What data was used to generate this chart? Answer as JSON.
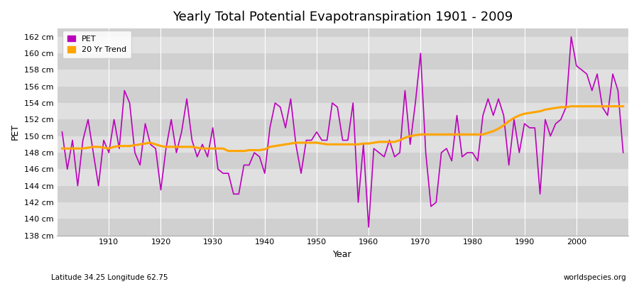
{
  "title": "Yearly Total Potential Evapotranspiration 1901 - 2009",
  "xlabel": "Year",
  "ylabel": "PET",
  "subtitle_left": "Latitude 34.25 Longitude 62.75",
  "subtitle_right": "worldspecies.org",
  "ylim": [
    138,
    163
  ],
  "ytick_step": 2,
  "fig_bg_color": "#ffffff",
  "plot_bg_color": "#dcdcdc",
  "band_color_1": "#d0d0d0",
  "band_color_2": "#e0e0e0",
  "pet_color": "#bb00bb",
  "trend_color": "#ffa500",
  "legend_pet": "PET",
  "legend_trend": "20 Yr Trend",
  "years": [
    1901,
    1902,
    1903,
    1904,
    1905,
    1906,
    1907,
    1908,
    1909,
    1910,
    1911,
    1912,
    1913,
    1914,
    1915,
    1916,
    1917,
    1918,
    1919,
    1920,
    1921,
    1922,
    1923,
    1924,
    1925,
    1926,
    1927,
    1928,
    1929,
    1930,
    1931,
    1932,
    1933,
    1934,
    1935,
    1936,
    1937,
    1938,
    1939,
    1940,
    1941,
    1942,
    1943,
    1944,
    1945,
    1946,
    1947,
    1948,
    1949,
    1950,
    1951,
    1952,
    1953,
    1954,
    1955,
    1956,
    1957,
    1958,
    1959,
    1960,
    1961,
    1962,
    1963,
    1964,
    1965,
    1966,
    1967,
    1968,
    1969,
    1970,
    1971,
    1972,
    1973,
    1974,
    1975,
    1976,
    1977,
    1978,
    1979,
    1980,
    1981,
    1982,
    1983,
    1984,
    1985,
    1986,
    1987,
    1988,
    1989,
    1990,
    1991,
    1992,
    1993,
    1994,
    1995,
    1996,
    1997,
    1998,
    1999,
    2000,
    2001,
    2002,
    2003,
    2004,
    2005,
    2006,
    2007,
    2008,
    2009
  ],
  "pet_values": [
    150.5,
    146.0,
    149.5,
    144.0,
    149.5,
    152.0,
    148.0,
    144.0,
    149.5,
    148.0,
    152.0,
    148.5,
    155.5,
    154.0,
    148.0,
    146.5,
    151.5,
    149.0,
    148.5,
    143.5,
    148.5,
    152.0,
    148.0,
    150.5,
    154.5,
    149.5,
    147.5,
    149.0,
    147.5,
    151.0,
    146.0,
    145.5,
    145.5,
    143.0,
    143.0,
    146.5,
    146.5,
    148.0,
    147.5,
    145.5,
    151.0,
    154.0,
    153.5,
    151.0,
    154.5,
    149.0,
    145.5,
    149.5,
    149.5,
    150.5,
    149.5,
    149.5,
    154.0,
    153.5,
    149.5,
    149.5,
    154.0,
    142.0,
    149.0,
    139.0,
    148.5,
    148.0,
    147.5,
    149.5,
    147.5,
    148.0,
    155.5,
    149.0,
    154.0,
    160.0,
    148.0,
    141.5,
    142.0,
    148.0,
    148.5,
    147.0,
    152.5,
    147.5,
    148.0,
    148.0,
    147.0,
    152.5,
    154.5,
    152.5,
    154.5,
    152.5,
    146.5,
    152.0,
    148.0,
    151.5,
    151.0,
    151.0,
    143.0,
    152.0,
    150.0,
    151.5,
    152.0,
    153.5,
    162.0,
    158.5,
    158.0,
    157.5,
    155.5,
    157.5,
    153.5,
    152.5,
    157.5,
    155.5,
    148.0
  ],
  "trend_values": [
    148.5,
    148.5,
    148.5,
    148.5,
    148.5,
    148.6,
    148.7,
    148.7,
    148.6,
    148.5,
    148.7,
    148.8,
    148.8,
    148.8,
    148.9,
    149.0,
    149.1,
    149.2,
    149.0,
    148.8,
    148.7,
    148.7,
    148.7,
    148.7,
    148.7,
    148.7,
    148.6,
    148.5,
    148.5,
    148.5,
    148.5,
    148.5,
    148.2,
    148.2,
    148.2,
    148.2,
    148.3,
    148.3,
    148.3,
    148.4,
    148.7,
    148.8,
    148.9,
    149.0,
    149.1,
    149.2,
    149.2,
    149.2,
    149.2,
    149.2,
    149.1,
    149.0,
    149.0,
    149.0,
    149.0,
    149.0,
    149.0,
    149.0,
    149.1,
    149.1,
    149.2,
    149.3,
    149.3,
    149.3,
    149.3,
    149.5,
    149.8,
    150.0,
    150.1,
    150.2,
    150.2,
    150.2,
    150.2,
    150.2,
    150.2,
    150.2,
    150.2,
    150.2,
    150.2,
    150.2,
    150.2,
    150.2,
    150.4,
    150.6,
    150.9,
    151.3,
    151.8,
    152.2,
    152.5,
    152.7,
    152.8,
    152.9,
    153.0,
    153.2,
    153.3,
    153.4,
    153.5,
    153.5,
    153.6,
    153.6,
    153.6,
    153.6,
    153.6,
    153.6,
    153.6,
    153.6,
    153.6,
    153.6,
    153.6
  ]
}
